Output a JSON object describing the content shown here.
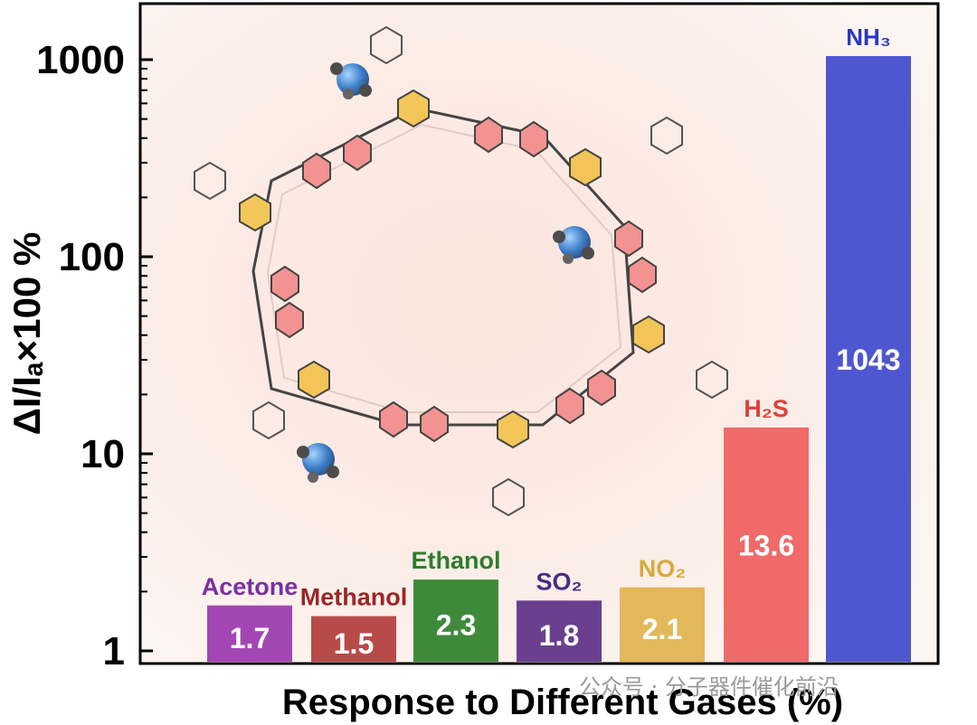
{
  "chart_data": {
    "type": "bar",
    "yscale": "log",
    "ylim": [
      0.8,
      2000
    ],
    "yticks": [
      1,
      10,
      100,
      1000
    ],
    "ylabel": "ΔI/Iₐ×100 %",
    "xlabel": "Response to Different Gases (%)",
    "title": "",
    "grid": false,
    "categories": [
      "Acetone",
      "Methanol",
      "Ethanol",
      "SO₂",
      "NO₂",
      "H₂S",
      "NH₃"
    ],
    "values": [
      1.7,
      1.5,
      2.3,
      1.8,
      2.1,
      13.6,
      1043
    ],
    "value_labels": [
      "1.7",
      "1.5",
      "2.3",
      "1.8",
      "2.1",
      "13.6",
      "1043"
    ],
    "colors": [
      "#a346b3",
      "#b84a4a",
      "#3f8a3a",
      "#6a3f90",
      "#e3b85a",
      "#f06a6a",
      "#4f57d0"
    ],
    "label_colors": [
      "#7a2fa0",
      "#9c2626",
      "#2e7d2e",
      "#4b2a85",
      "#d9a93a",
      "#e0403e",
      "#2b39c0"
    ]
  },
  "watermark": "公众号 · 分子器件催化前沿"
}
